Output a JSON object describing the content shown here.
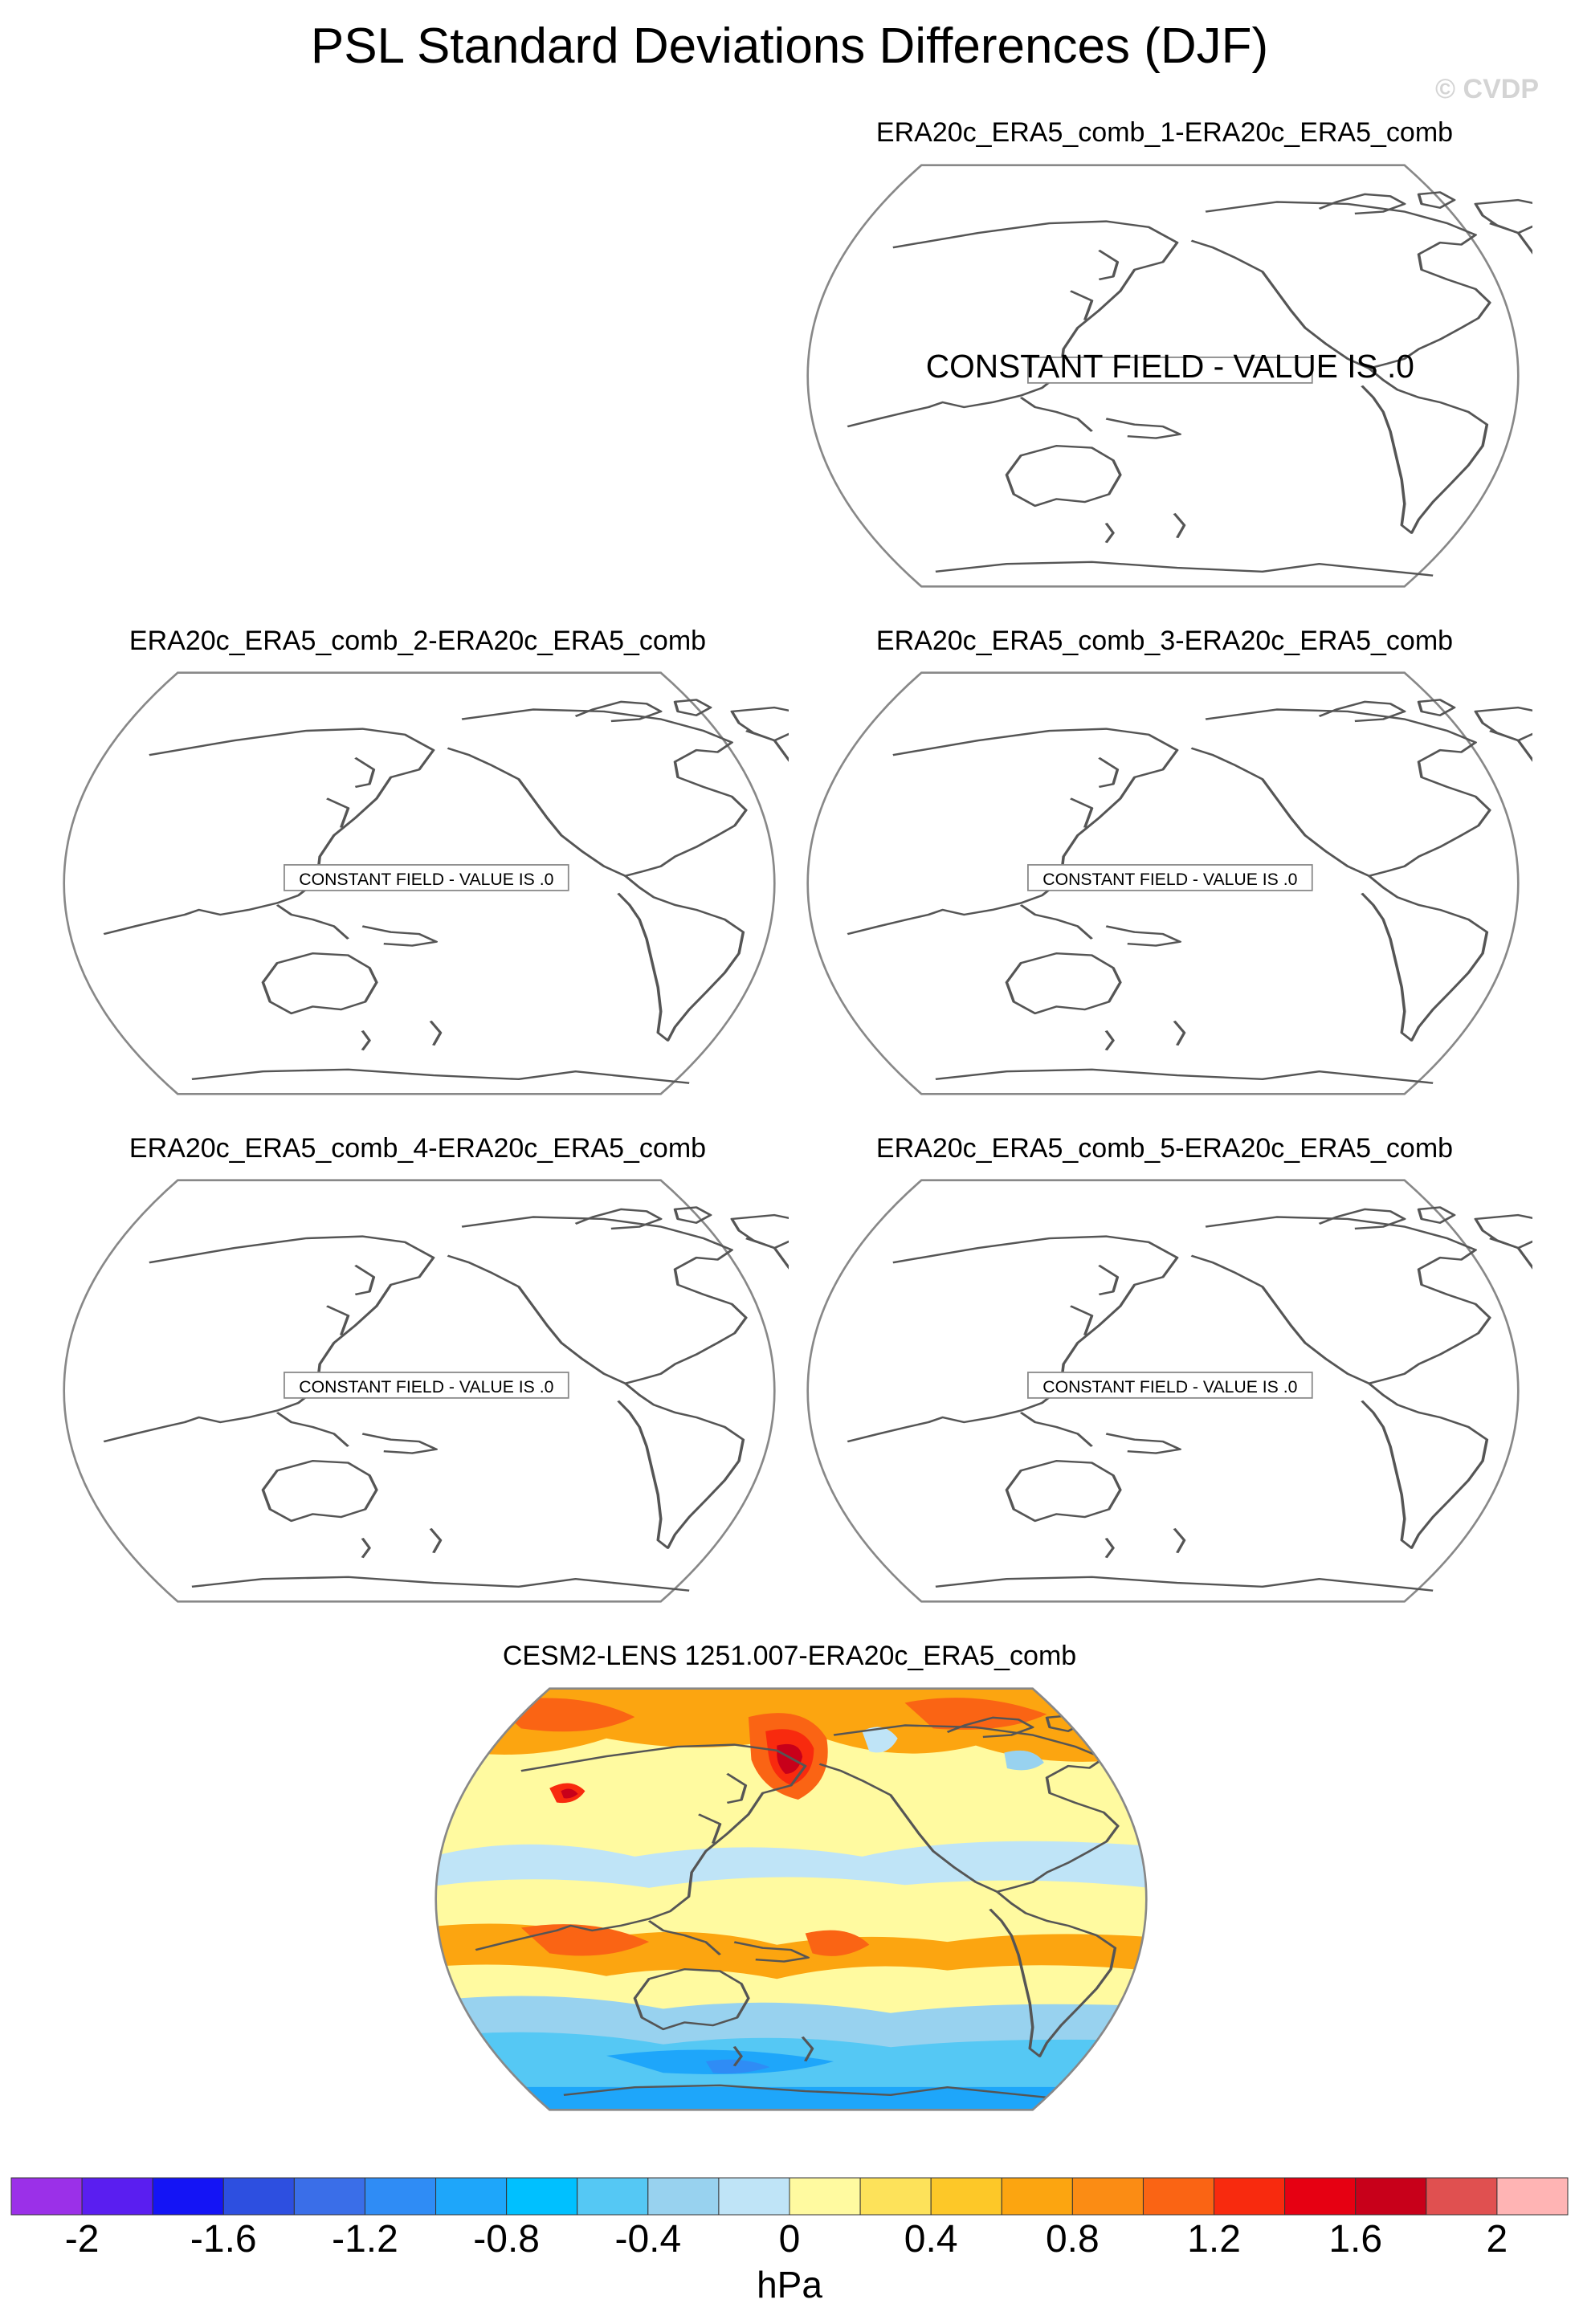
{
  "figure": {
    "title": "PSL Standard Deviations Differences (DJF)",
    "watermark": "© CVDP"
  },
  "panels": [
    {
      "title": "ERA20c_ERA5_comb_1-ERA20c_ERA5_comb",
      "note": "CONSTANT FIELD - VALUE IS .0"
    },
    {
      "title": "ERA20c_ERA5_comb_2-ERA20c_ERA5_comb",
      "note": "CONSTANT FIELD - VALUE IS .0"
    },
    {
      "title": "ERA20c_ERA5_comb_3-ERA20c_ERA5_comb",
      "note": "CONSTANT FIELD - VALUE IS .0"
    },
    {
      "title": "ERA20c_ERA5_comb_4-ERA20c_ERA5_comb",
      "note": "CONSTANT FIELD - VALUE IS .0"
    },
    {
      "title": "ERA20c_ERA5_comb_5-ERA20c_ERA5_comb",
      "note": "CONSTANT FIELD - VALUE IS .0"
    },
    {
      "title": "CESM2-LENS 1251.007-ERA20c_ERA5_comb"
    }
  ],
  "colorbar": {
    "units": "hPa",
    "levels": [
      -2.2,
      -2,
      -1.8,
      -1.6,
      -1.4,
      -1.2,
      -1,
      -0.8,
      -0.6,
      -0.4,
      -0.2,
      0,
      0.2,
      0.4,
      0.6,
      0.8,
      1,
      1.2,
      1.4,
      1.6,
      1.8,
      2,
      2.2
    ],
    "colors": [
      "#9b30e8",
      "#5a1ef0",
      "#1414f5",
      "#2d4fe0",
      "#3a6ee8",
      "#2f8cf5",
      "#1ea6fa",
      "#00c0ff",
      "#55c8f4",
      "#98d2ef",
      "#bfe4f7",
      "#fffaa0",
      "#fde25a",
      "#fdc828",
      "#fca510",
      "#fb8c14",
      "#fa6414",
      "#f82a0e",
      "#e60012",
      "#c8001a",
      "#e05050",
      "#ffb4b4"
    ],
    "tick_labels": [
      "-2",
      "-1.6",
      "-1.2",
      "-0.8",
      "-0.4",
      "0",
      "0.4",
      "0.8",
      "1.2",
      "1.6",
      "2"
    ]
  }
}
